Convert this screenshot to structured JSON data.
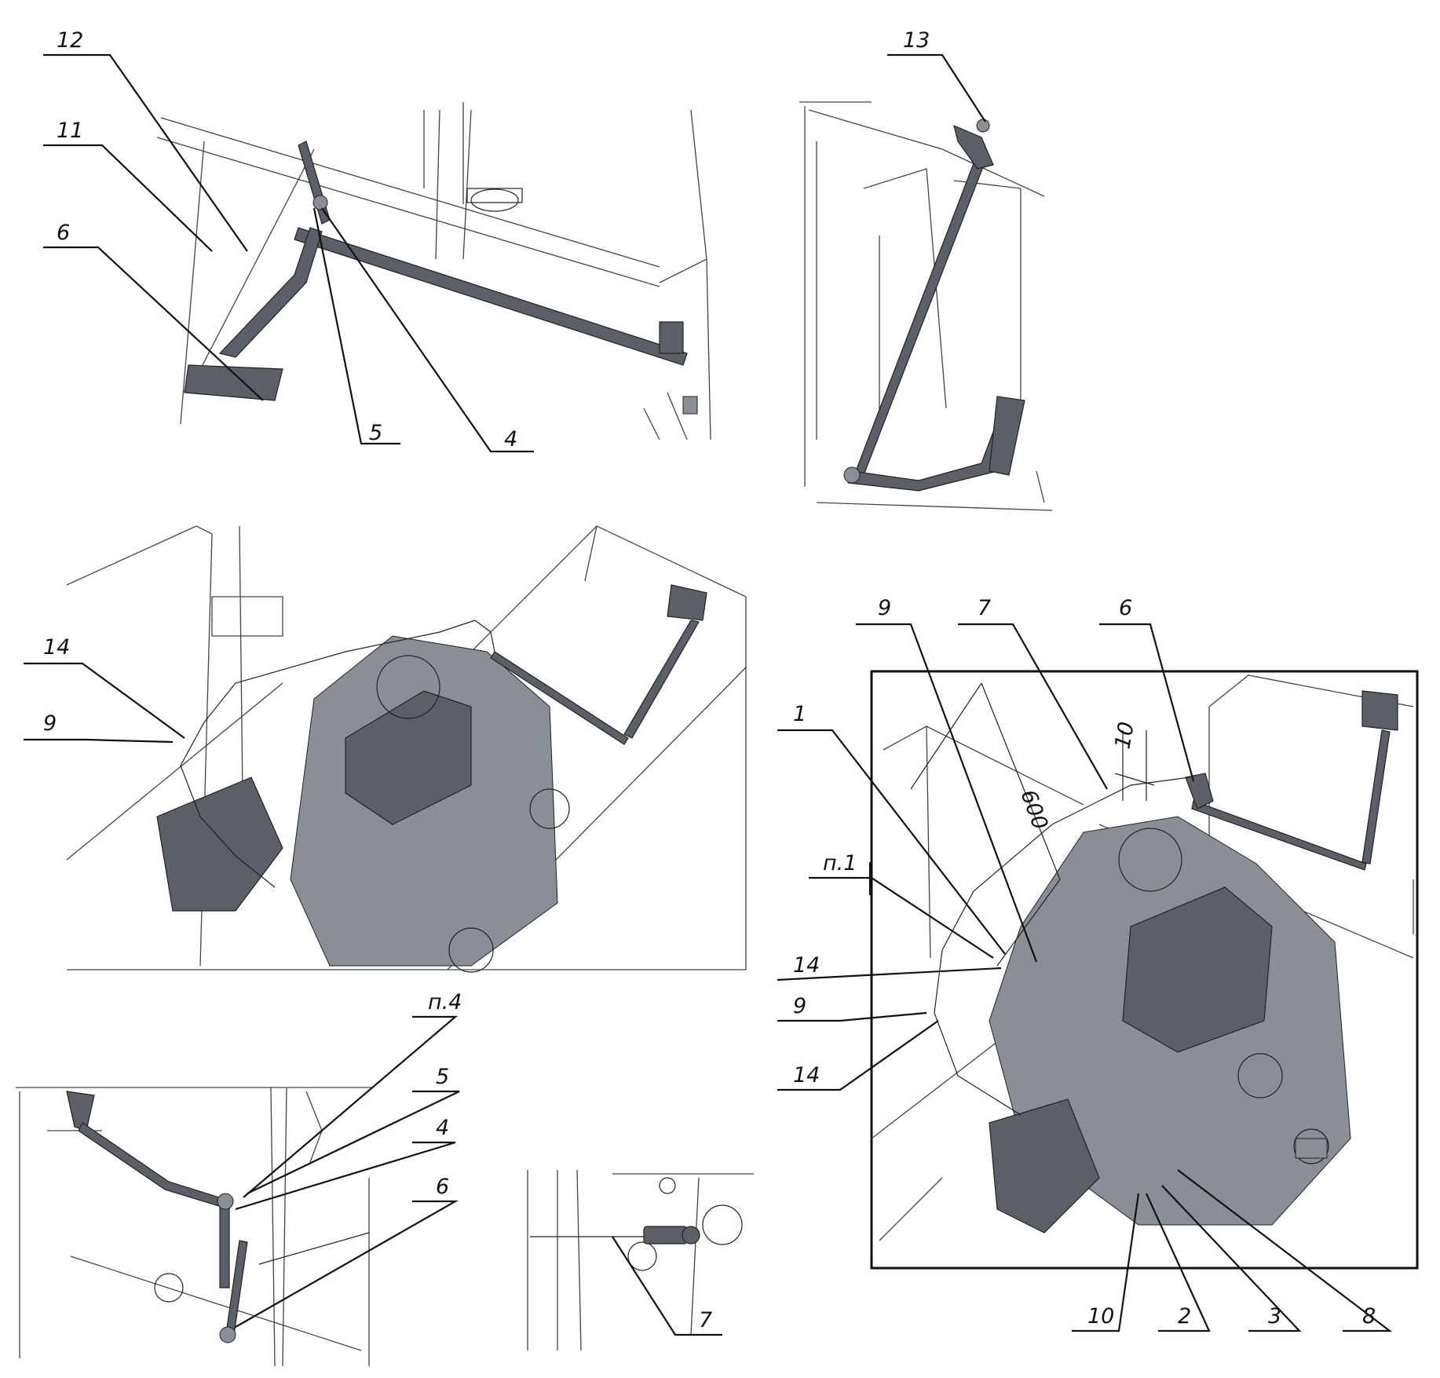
{
  "callouts": {
    "v1": {
      "c12": "12",
      "c11": "11",
      "c6": "6",
      "c5": "5",
      "c4": "4"
    },
    "v2": {
      "c13": "13"
    },
    "v3": {
      "c14": "14",
      "c9": "9"
    },
    "v4": {
      "c9": "9",
      "c7": "7",
      "c6": "6",
      "c1": "1",
      "n1": "п.1",
      "c14a": "14",
      "c9b": "9",
      "c14b": "14",
      "c10": "10",
      "c2": "2",
      "c3": "3",
      "c8": "8",
      "dim600": "600",
      "dim10": "10"
    },
    "v5": {
      "n4": "п.4",
      "c5": "5",
      "c4": "4",
      "c6": "6"
    },
    "v6": {
      "c7": "7"
    }
  }
}
